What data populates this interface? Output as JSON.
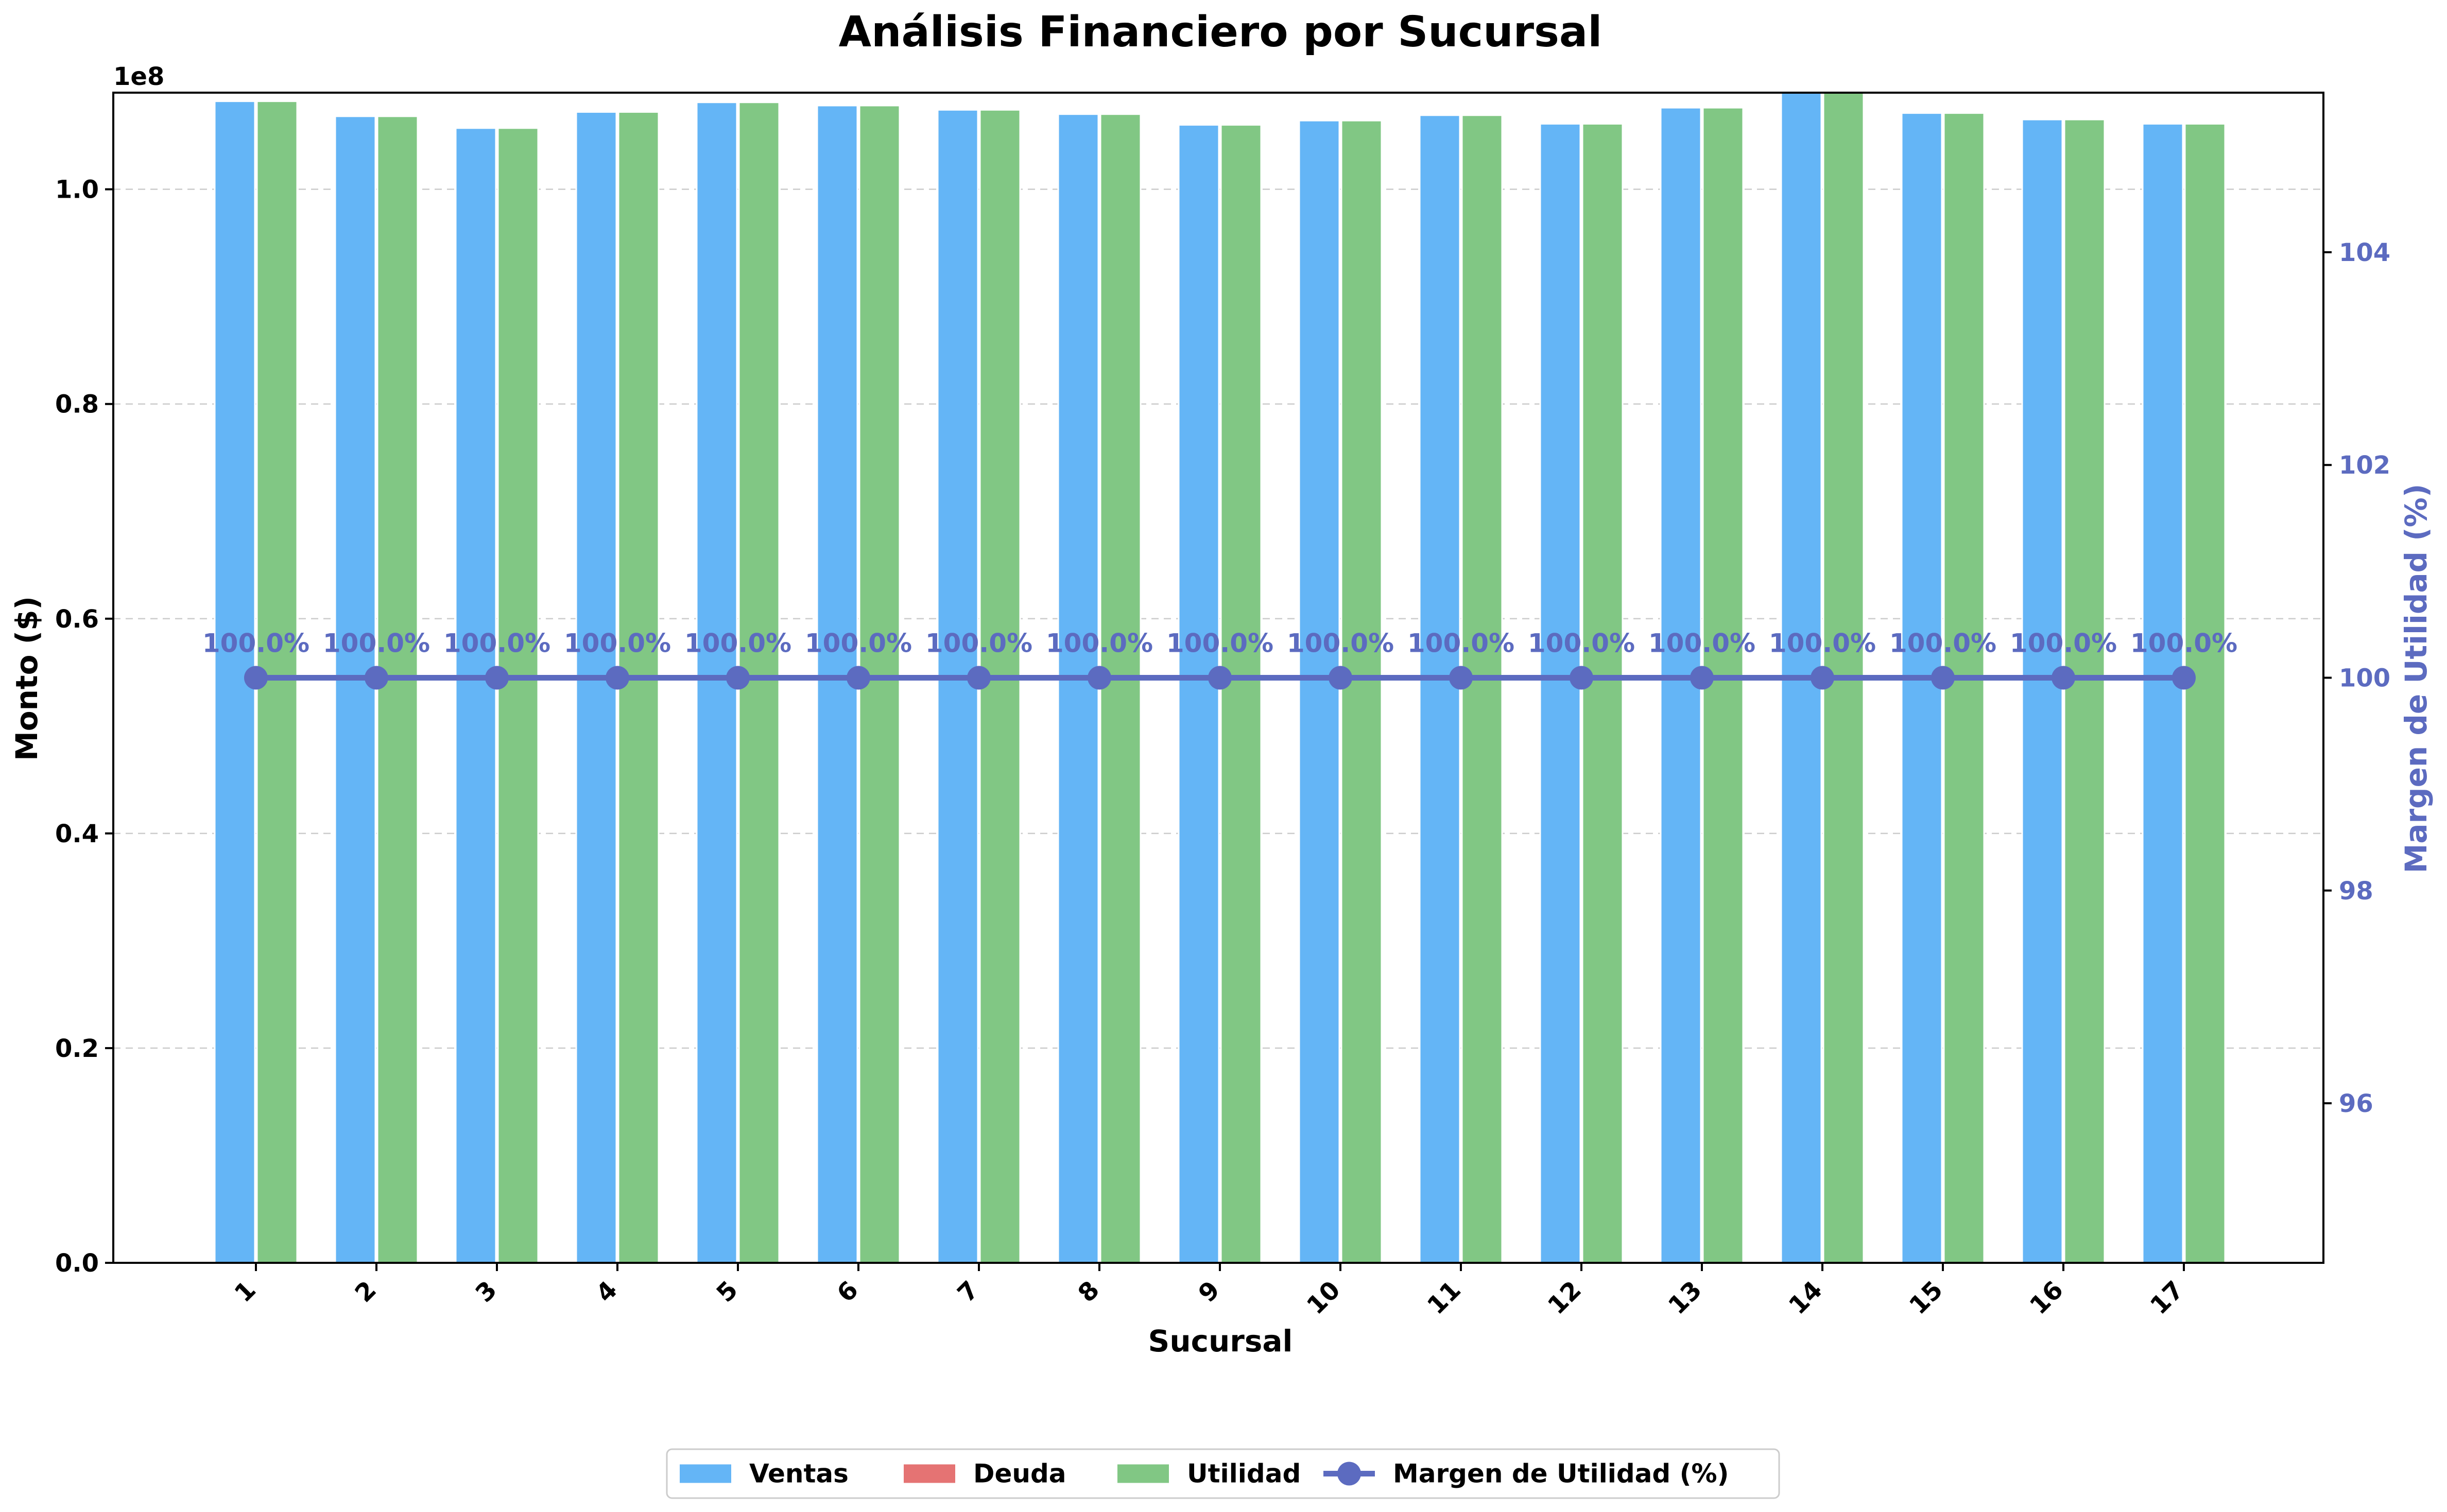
{
  "chart_data": {
    "type": "bar",
    "title": "Análisis Financiero por Sucursal",
    "xlabel": "Sucursal",
    "ylabel": "Monto ($)",
    "y_offset_label": "1e8",
    "y2label": "Margen de Utilidad (%)",
    "categories": [
      "1",
      "2",
      "3",
      "4",
      "5",
      "6",
      "7",
      "8",
      "9",
      "10",
      "11",
      "12",
      "13",
      "14",
      "15",
      "16",
      "17"
    ],
    "series": [
      {
        "name": "Ventas",
        "kind": "bar",
        "color": "#64B5F6",
        "values": [
          108200000,
          106800000,
          105700000,
          107200000,
          108100000,
          107800000,
          107400000,
          107000000,
          106000000,
          106400000,
          106900000,
          106100000,
          107600000,
          109000000,
          107100000,
          106500000,
          106100000
        ]
      },
      {
        "name": "Deuda",
        "kind": "bar",
        "color": "#E57373",
        "values": [
          0,
          0,
          0,
          0,
          0,
          0,
          0,
          0,
          0,
          0,
          0,
          0,
          0,
          0,
          0,
          0,
          0
        ]
      },
      {
        "name": "Utilidad",
        "kind": "bar",
        "color": "#81C784",
        "values": [
          108200000,
          106800000,
          105700000,
          107200000,
          108100000,
          107800000,
          107400000,
          107000000,
          106000000,
          106400000,
          106900000,
          106100000,
          107600000,
          109000000,
          107100000,
          106500000,
          106100000
        ]
      },
      {
        "name": "Margen de Utilidad (%)",
        "kind": "line",
        "axis": "right",
        "color": "#5C6BC0",
        "values": [
          100,
          100,
          100,
          100,
          100,
          100,
          100,
          100,
          100,
          100,
          100,
          100,
          100,
          100,
          100,
          100,
          100
        ],
        "data_labels": [
          "100.0%",
          "100.0%",
          "100.0%",
          "100.0%",
          "100.0%",
          "100.0%",
          "100.0%",
          "100.0%",
          "100.0%",
          "100.0%",
          "100.0%",
          "100.0%",
          "100.0%",
          "100.0%",
          "100.0%",
          "100.0%",
          "100.0%"
        ]
      }
    ],
    "ylim": [
      0,
      109000000
    ],
    "yticks": [
      0,
      20000000,
      40000000,
      60000000,
      80000000,
      100000000
    ],
    "ytick_labels": [
      "0.0",
      "0.2",
      "0.4",
      "0.6",
      "0.8",
      "1.0"
    ],
    "y2lim": [
      94.5,
      105.5
    ],
    "y2ticks": [
      96,
      98,
      100,
      102,
      104
    ],
    "y2tick_labels": [
      "96",
      "98",
      "100",
      "102",
      "104"
    ],
    "grid": "horizontal dashed",
    "legend_position": "bottom-center"
  }
}
